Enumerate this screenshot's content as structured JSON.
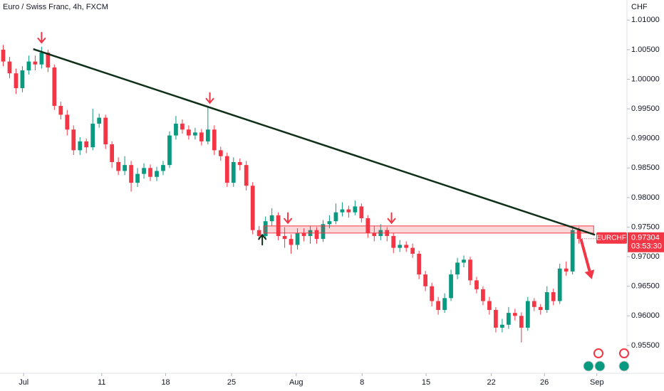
{
  "chart_data": {
    "type": "candlestick",
    "title": "Euro / Swiss Franc, 4h, FXCM",
    "y_unit": "CHF",
    "symbol": "EURCHF",
    "last_price": 0.97304,
    "countdown": "03:53:30",
    "up_color": "#089981",
    "down_color": "#f23645",
    "xlim": [
      0,
      98
    ],
    "xticks": [
      {
        "value": 3.7,
        "label": "Jul"
      },
      {
        "value": 15.9,
        "label": "11"
      },
      {
        "value": 25.9,
        "label": "18"
      },
      {
        "value": 36.2,
        "label": "25"
      },
      {
        "value": 46.3,
        "label": "Aug"
      },
      {
        "value": 56.6,
        "label": "8"
      },
      {
        "value": 66.6,
        "label": "15"
      },
      {
        "value": 76.8,
        "label": "22"
      },
      {
        "value": 85.1,
        "label": "26"
      },
      {
        "value": 93.3,
        "label": "Sep"
      }
    ],
    "ylim": [
      0.9503,
      1.0134
    ],
    "yticks": [
      {
        "value": 1.01,
        "label": "1.01000"
      },
      {
        "value": 1.005,
        "label": "1.00500"
      },
      {
        "value": 1.0,
        "label": "1.00000"
      },
      {
        "value": 0.995,
        "label": "0.99500"
      },
      {
        "value": 0.99,
        "label": "0.99000"
      },
      {
        "value": 0.985,
        "label": "0.98500"
      },
      {
        "value": 0.98,
        "label": "0.98000"
      },
      {
        "value": 0.975,
        "label": "0.97500"
      },
      {
        "value": 0.97,
        "label": "0.97000"
      },
      {
        "value": 0.965,
        "label": "0.96500"
      },
      {
        "value": 0.96,
        "label": "0.96000"
      },
      {
        "value": 0.955,
        "label": "0.95500"
      }
    ],
    "ohlc": [
      [
        1.005,
        1.0058,
        1.0022,
        1.003
      ],
      [
        1.003,
        1.0038,
        1.0002,
        1.001
      ],
      [
        1.001,
        1.0018,
        0.9975,
        0.9985
      ],
      [
        0.9985,
        1.0022,
        0.9978,
        1.0015
      ],
      [
        1.0015,
        1.004,
        1.0008,
        1.003
      ],
      [
        1.003,
        1.004,
        1.0015,
        1.0025
      ],
      [
        1.0025,
        1.0055,
        1.0018,
        1.0045
      ],
      [
        1.0045,
        1.005,
        1.0012,
        1.002
      ],
      [
        1.002,
        1.0025,
        0.9948,
        0.9955
      ],
      [
        0.9955,
        0.9962,
        0.9932,
        0.994
      ],
      [
        0.994,
        0.9948,
        0.9905,
        0.9915
      ],
      [
        0.9915,
        0.9922,
        0.9872,
        0.988
      ],
      [
        0.988,
        0.9902,
        0.9872,
        0.9895
      ],
      [
        0.9895,
        0.99,
        0.9875,
        0.9885
      ],
      [
        0.9885,
        0.995,
        0.988,
        0.9925
      ],
      [
        0.9925,
        0.9942,
        0.9918,
        0.9935
      ],
      [
        0.9935,
        0.994,
        0.9882,
        0.989
      ],
      [
        0.989,
        0.9895,
        0.985,
        0.986
      ],
      [
        0.986,
        0.9868,
        0.9838,
        0.9845
      ],
      [
        0.9845,
        0.987,
        0.9838,
        0.9855
      ],
      [
        0.9855,
        0.9862,
        0.981,
        0.9825
      ],
      [
        0.9825,
        0.985,
        0.9818,
        0.984
      ],
      [
        0.984,
        0.9858,
        0.9832,
        0.985
      ],
      [
        0.985,
        0.9856,
        0.9828,
        0.9835
      ],
      [
        0.9835,
        0.9852,
        0.9828,
        0.9845
      ],
      [
        0.9845,
        0.9862,
        0.9838,
        0.9855
      ],
      [
        0.9855,
        0.9912,
        0.985,
        0.9905
      ],
      [
        0.9905,
        0.9938,
        0.9898,
        0.9925
      ],
      [
        0.9925,
        0.9932,
        0.9908,
        0.9915
      ],
      [
        0.9915,
        0.9922,
        0.9898,
        0.9905
      ],
      [
        0.9905,
        0.9918,
        0.9898,
        0.991
      ],
      [
        0.991,
        0.9916,
        0.9888,
        0.9895
      ],
      [
        0.9895,
        0.9955,
        0.989,
        0.9915
      ],
      [
        0.9915,
        0.9922,
        0.9872,
        0.988
      ],
      [
        0.988,
        0.9886,
        0.9862,
        0.987
      ],
      [
        0.987,
        0.9876,
        0.9818,
        0.9825
      ],
      [
        0.9825,
        0.9868,
        0.9818,
        0.986
      ],
      [
        0.986,
        0.9866,
        0.9846,
        0.9855
      ],
      [
        0.9855,
        0.9862,
        0.9812,
        0.982
      ],
      [
        0.982,
        0.9826,
        0.9738,
        0.9745
      ],
      [
        0.9745,
        0.9752,
        0.9728,
        0.9735
      ],
      [
        0.9735,
        0.9768,
        0.973,
        0.976
      ],
      [
        0.976,
        0.9782,
        0.9752,
        0.977
      ],
      [
        0.977,
        0.9775,
        0.9728,
        0.9735
      ],
      [
        0.9735,
        0.975,
        0.9715,
        0.973
      ],
      [
        0.973,
        0.9738,
        0.9705,
        0.972
      ],
      [
        0.972,
        0.9748,
        0.9712,
        0.974
      ],
      [
        0.974,
        0.9748,
        0.9726,
        0.9735
      ],
      [
        0.9735,
        0.9752,
        0.9722,
        0.9745
      ],
      [
        0.9745,
        0.975,
        0.9722,
        0.973
      ],
      [
        0.973,
        0.9762,
        0.9725,
        0.9755
      ],
      [
        0.9755,
        0.977,
        0.9748,
        0.976
      ],
      [
        0.976,
        0.979,
        0.9755,
        0.9775
      ],
      [
        0.9775,
        0.9792,
        0.9768,
        0.978
      ],
      [
        0.978,
        0.9786,
        0.9766,
        0.9775
      ],
      [
        0.9775,
        0.9795,
        0.977,
        0.9785
      ],
      [
        0.9785,
        0.979,
        0.9758,
        0.9765
      ],
      [
        0.9765,
        0.977,
        0.9732,
        0.974
      ],
      [
        0.974,
        0.9752,
        0.9726,
        0.9735
      ],
      [
        0.9735,
        0.9755,
        0.9728,
        0.9745
      ],
      [
        0.9745,
        0.975,
        0.9726,
        0.9735
      ],
      [
        0.9735,
        0.974,
        0.9706,
        0.9715
      ],
      [
        0.9715,
        0.9728,
        0.9708,
        0.972
      ],
      [
        0.972,
        0.9726,
        0.9708,
        0.9715
      ],
      [
        0.9715,
        0.9722,
        0.9698,
        0.9705
      ],
      [
        0.9705,
        0.971,
        0.9662,
        0.967
      ],
      [
        0.967,
        0.9676,
        0.9642,
        0.965
      ],
      [
        0.965,
        0.9656,
        0.9616,
        0.9625
      ],
      [
        0.9625,
        0.9632,
        0.9602,
        0.961
      ],
      [
        0.961,
        0.9638,
        0.9605,
        0.963
      ],
      [
        0.963,
        0.9678,
        0.9625,
        0.967
      ],
      [
        0.967,
        0.9698,
        0.9662,
        0.969
      ],
      [
        0.969,
        0.9702,
        0.9682,
        0.9695
      ],
      [
        0.9695,
        0.97,
        0.9652,
        0.966
      ],
      [
        0.966,
        0.9666,
        0.9638,
        0.9645
      ],
      [
        0.9645,
        0.965,
        0.9618,
        0.9625
      ],
      [
        0.9625,
        0.9632,
        0.9602,
        0.961
      ],
      [
        0.961,
        0.9615,
        0.9572,
        0.958
      ],
      [
        0.958,
        0.9595,
        0.9572,
        0.9585
      ],
      [
        0.9585,
        0.9615,
        0.9578,
        0.9605
      ],
      [
        0.9605,
        0.9612,
        0.9592,
        0.96
      ],
      [
        0.96,
        0.9606,
        0.9555,
        0.958
      ],
      [
        0.958,
        0.9632,
        0.9575,
        0.9625
      ],
      [
        0.9625,
        0.963,
        0.9608,
        0.9615
      ],
      [
        0.9615,
        0.962,
        0.9602,
        0.961
      ],
      [
        0.961,
        0.965,
        0.9605,
        0.964
      ],
      [
        0.964,
        0.9646,
        0.9618,
        0.9625
      ],
      [
        0.9625,
        0.9688,
        0.962,
        0.968
      ],
      [
        0.968,
        0.9692,
        0.9668,
        0.9675
      ],
      [
        0.9675,
        0.9752,
        0.967,
        0.9745
      ],
      [
        0.9745,
        0.975,
        0.9722,
        0.973
      ]
    ],
    "trendline": {
      "x": [
        5.2,
        93.0
      ],
      "y": [
        1.0051,
        0.9737
      ],
      "color": "#10301a"
    },
    "zone": {
      "x": [
        41.2,
        92.8
      ],
      "y": [
        0.974,
        0.9752
      ],
      "color": "#f23645"
    },
    "markers": [
      {
        "x": 6.5,
        "y": 1.0062,
        "direction": "down",
        "color": "#f23645"
      },
      {
        "x": 32.8,
        "y": 0.996,
        "direction": "down",
        "color": "#f23645"
      },
      {
        "x": 45.0,
        "y": 0.9757,
        "direction": "down",
        "color": "#f23645"
      },
      {
        "x": 61.2,
        "y": 0.9757,
        "direction": "down",
        "color": "#f23645"
      },
      {
        "x": 41.0,
        "y": 0.9737,
        "direction": "up",
        "color": "#10301a"
      }
    ],
    "forecast_arrow": {
      "x": [
        90.8,
        92.5
      ],
      "y": [
        0.973,
        0.9662
      ],
      "color": "#f23645"
    }
  }
}
